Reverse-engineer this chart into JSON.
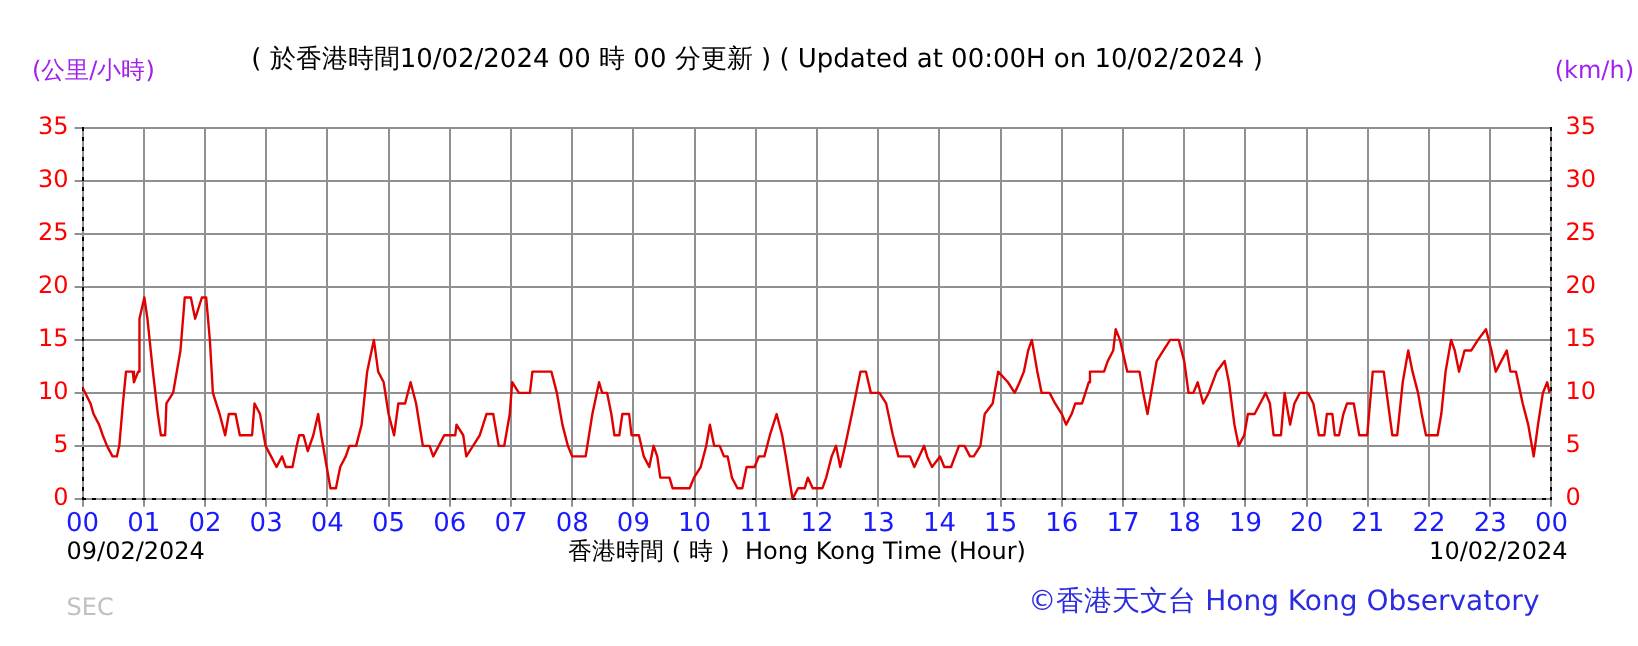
{
  "chart_data": {
    "type": "line",
    "title": "( 於香港時間10/02/2024 00 時 00 分更新 ) ( Updated at 00:00H on 10/02/2024 )",
    "xlabel": "香港時間 ( 時 )  Hong Kong Time (Hour)",
    "ylabel": "(公里/小時)",
    "y2label": "(km/h)",
    "annotations": [
      "09/02/2024",
      "10/02/2024",
      "SEC",
      "©香港天文台 Hong Kong Observatory"
    ],
    "x": [
      0,
      0.13,
      0.18,
      0.27,
      0.33,
      0.4,
      0.49,
      0.56,
      0.6,
      0.66,
      0.71,
      0.82,
      0.84,
      0.91,
      0.93,
      1.01,
      1.06,
      1.15,
      1.23,
      1.28,
      1.35,
      1.37,
      1.48,
      1.6,
      1.67,
      1.77,
      1.84,
      1.95,
      2.02,
      2.08,
      2.13,
      2.24,
      2.33,
      2.39,
      2.5,
      2.57,
      2.77,
      2.81,
      2.9,
      2.99,
      3.08,
      3.17,
      3.26,
      3.32,
      3.43,
      3.5,
      3.54,
      3.61,
      3.68,
      3.77,
      3.85,
      3.9,
      3.96,
      4.05,
      4.14,
      4.21,
      4.3,
      4.36,
      4.47,
      4.56,
      4.65,
      4.76,
      4.83,
      4.92,
      5.0,
      5.09,
      5.16,
      5.27,
      5.36,
      5.45,
      5.56,
      5.67,
      5.73,
      5.82,
      5.91,
      6.09,
      6.11,
      6.22,
      6.27,
      6.38,
      6.49,
      6.6,
      6.71,
      6.8,
      6.89,
      6.98,
      7.02,
      7.13,
      7.31,
      7.35,
      7.66,
      7.75,
      7.84,
      7.93,
      8.0,
      8.22,
      8.33,
      8.44,
      8.49,
      8.57,
      8.64,
      8.69,
      8.77,
      8.82,
      8.93,
      8.97,
      9.09,
      9.17,
      9.26,
      9.33,
      9.39,
      9.44,
      9.59,
      9.64,
      9.92,
      9.99,
      10.1,
      10.19,
      10.25,
      10.32,
      10.41,
      10.48,
      10.54,
      10.61,
      10.7,
      10.78,
      10.85,
      10.98,
      11.05,
      11.14,
      11.23,
      11.34,
      11.43,
      11.49,
      11.6,
      11.69,
      11.8,
      11.85,
      11.93,
      12.09,
      12.15,
      12.24,
      12.31,
      12.38,
      12.46,
      12.57,
      12.71,
      12.8,
      12.88,
      13.02,
      13.13,
      13.24,
      13.33,
      13.42,
      13.52,
      13.59,
      13.67,
      13.75,
      13.8,
      13.88,
      14.01,
      14.08,
      14.19,
      14.32,
      14.41,
      14.5,
      14.56,
      14.67,
      14.74,
      14.87,
      14.96,
      15.12,
      15.23,
      15.31,
      15.38,
      15.45,
      15.51,
      15.6,
      15.67,
      15.8,
      15.89,
      16.0,
      16.07,
      16.16,
      16.22,
      16.33,
      16.44,
      16.46,
      16.69,
      16.75,
      16.84,
      16.88,
      16.95,
      17.07,
      17.27,
      17.33,
      17.4,
      17.49,
      17.55,
      17.66,
      17.77,
      17.91,
      18.0,
      18.07,
      18.15,
      18.22,
      18.31,
      18.4,
      18.53,
      18.66,
      18.73,
      18.82,
      18.89,
      18.98,
      19.04,
      19.15,
      19.24,
      19.33,
      19.4,
      19.46,
      19.58,
      19.64,
      19.73,
      19.8,
      19.89,
      20.02,
      20.11,
      20.2,
      20.29,
      20.33,
      20.42,
      20.46,
      20.53,
      20.6,
      20.66,
      20.77,
      20.86,
      20.99,
      21.08,
      21.26,
      21.33,
      21.4,
      21.48,
      21.57,
      21.66,
      21.73,
      21.82,
      21.88,
      21.95,
      22.14,
      22.2,
      22.27,
      22.36,
      22.42,
      22.49,
      22.58,
      22.69,
      22.8,
      22.93,
      23.02,
      23.09,
      23.18,
      23.27,
      23.33,
      23.42,
      23.53,
      23.62,
      23.71,
      23.78,
      23.86,
      23.93,
      23.97
    ],
    "series": [
      {
        "color": "#e00000",
        "values": [
          10.5,
          9,
          8,
          7,
          6,
          5,
          4,
          4,
          5,
          9,
          12,
          12,
          11,
          12,
          17,
          19,
          17,
          12,
          8,
          6,
          6,
          9,
          10,
          14,
          19,
          19,
          17,
          19,
          19,
          15,
          10,
          8,
          6,
          8,
          8,
          6,
          6,
          9,
          8,
          5,
          4,
          3,
          4,
          3,
          3,
          5,
          6,
          6,
          4.5,
          6,
          8,
          6,
          4,
          1,
          1,
          3,
          4,
          5,
          5,
          7,
          12,
          15,
          12,
          11,
          8,
          6,
          9,
          9,
          11,
          9,
          5,
          5,
          4,
          5,
          6,
          6,
          7,
          6,
          4,
          5,
          6,
          8,
          8,
          5,
          5,
          8,
          11,
          10,
          10,
          12,
          12,
          10,
          7,
          5,
          4,
          4,
          8,
          11,
          10,
          10,
          8,
          6,
          6,
          8,
          8,
          6,
          6,
          4,
          3,
          5,
          4,
          2,
          2,
          1,
          1,
          2,
          3,
          5,
          7,
          5,
          5,
          4,
          4,
          2,
          1,
          1,
          3,
          3,
          4,
          4,
          6,
          8,
          6,
          4,
          0,
          1,
          1,
          2,
          1,
          1,
          2,
          4,
          5,
          3,
          5,
          8,
          12,
          12,
          10,
          10,
          9,
          6,
          4,
          4,
          4,
          3,
          4,
          5,
          4,
          3,
          4,
          3,
          3,
          5,
          5,
          4,
          4,
          5,
          8,
          9,
          12,
          11,
          10,
          11,
          12,
          14,
          15,
          12,
          10,
          10,
          9,
          8,
          7,
          8,
          9,
          9,
          11,
          12,
          12,
          13,
          14,
          16,
          15,
          12,
          12,
          10,
          8,
          11,
          13,
          14,
          15,
          15,
          13,
          10,
          10,
          11,
          9,
          10,
          12,
          13,
          11,
          7,
          5,
          6,
          8,
          8,
          9,
          10,
          9,
          6,
          6,
          10,
          7,
          9,
          10,
          10,
          9,
          6,
          6,
          8,
          8,
          6,
          6,
          8,
          9,
          9,
          6,
          6,
          12,
          12,
          9,
          6,
          6,
          11,
          14,
          12,
          10,
          8,
          6,
          6,
          8,
          12,
          15,
          14,
          12,
          14,
          14,
          15,
          16,
          14,
          12,
          13,
          14,
          12,
          12,
          9,
          7,
          4,
          7,
          10,
          11,
          10
        ]
      }
    ],
    "xlim": [
      0,
      24
    ],
    "xticks": [
      {
        "value": 0,
        "label": "00"
      },
      {
        "value": 1,
        "label": "01"
      },
      {
        "value": 2,
        "label": "02"
      },
      {
        "value": 3,
        "label": "03"
      },
      {
        "value": 4,
        "label": "04"
      },
      {
        "value": 5,
        "label": "05"
      },
      {
        "value": 6,
        "label": "06"
      },
      {
        "value": 7,
        "label": "07"
      },
      {
        "value": 8,
        "label": "08"
      },
      {
        "value": 9,
        "label": "09"
      },
      {
        "value": 10,
        "label": "10"
      },
      {
        "value": 11,
        "label": "11"
      },
      {
        "value": 12,
        "label": "12"
      },
      {
        "value": 13,
        "label": "13"
      },
      {
        "value": 14,
        "label": "14"
      },
      {
        "value": 15,
        "label": "15"
      },
      {
        "value": 16,
        "label": "16"
      },
      {
        "value": 17,
        "label": "17"
      },
      {
        "value": 18,
        "label": "18"
      },
      {
        "value": 19,
        "label": "19"
      },
      {
        "value": 20,
        "label": "20"
      },
      {
        "value": 21,
        "label": "21"
      },
      {
        "value": 22,
        "label": "22"
      },
      {
        "value": 23,
        "label": "23"
      },
      {
        "value": 24,
        "label": "00"
      }
    ],
    "ylim": [
      0,
      35
    ],
    "yticks": [
      0,
      5,
      10,
      15,
      20,
      25,
      30,
      35
    ],
    "y2lim": [
      0,
      35
    ],
    "y2ticks": [
      0,
      5,
      10,
      15,
      20,
      25,
      30,
      35
    ],
    "grid": true,
    "legend": false,
    "marker": "none",
    "line_style": "solid"
  }
}
